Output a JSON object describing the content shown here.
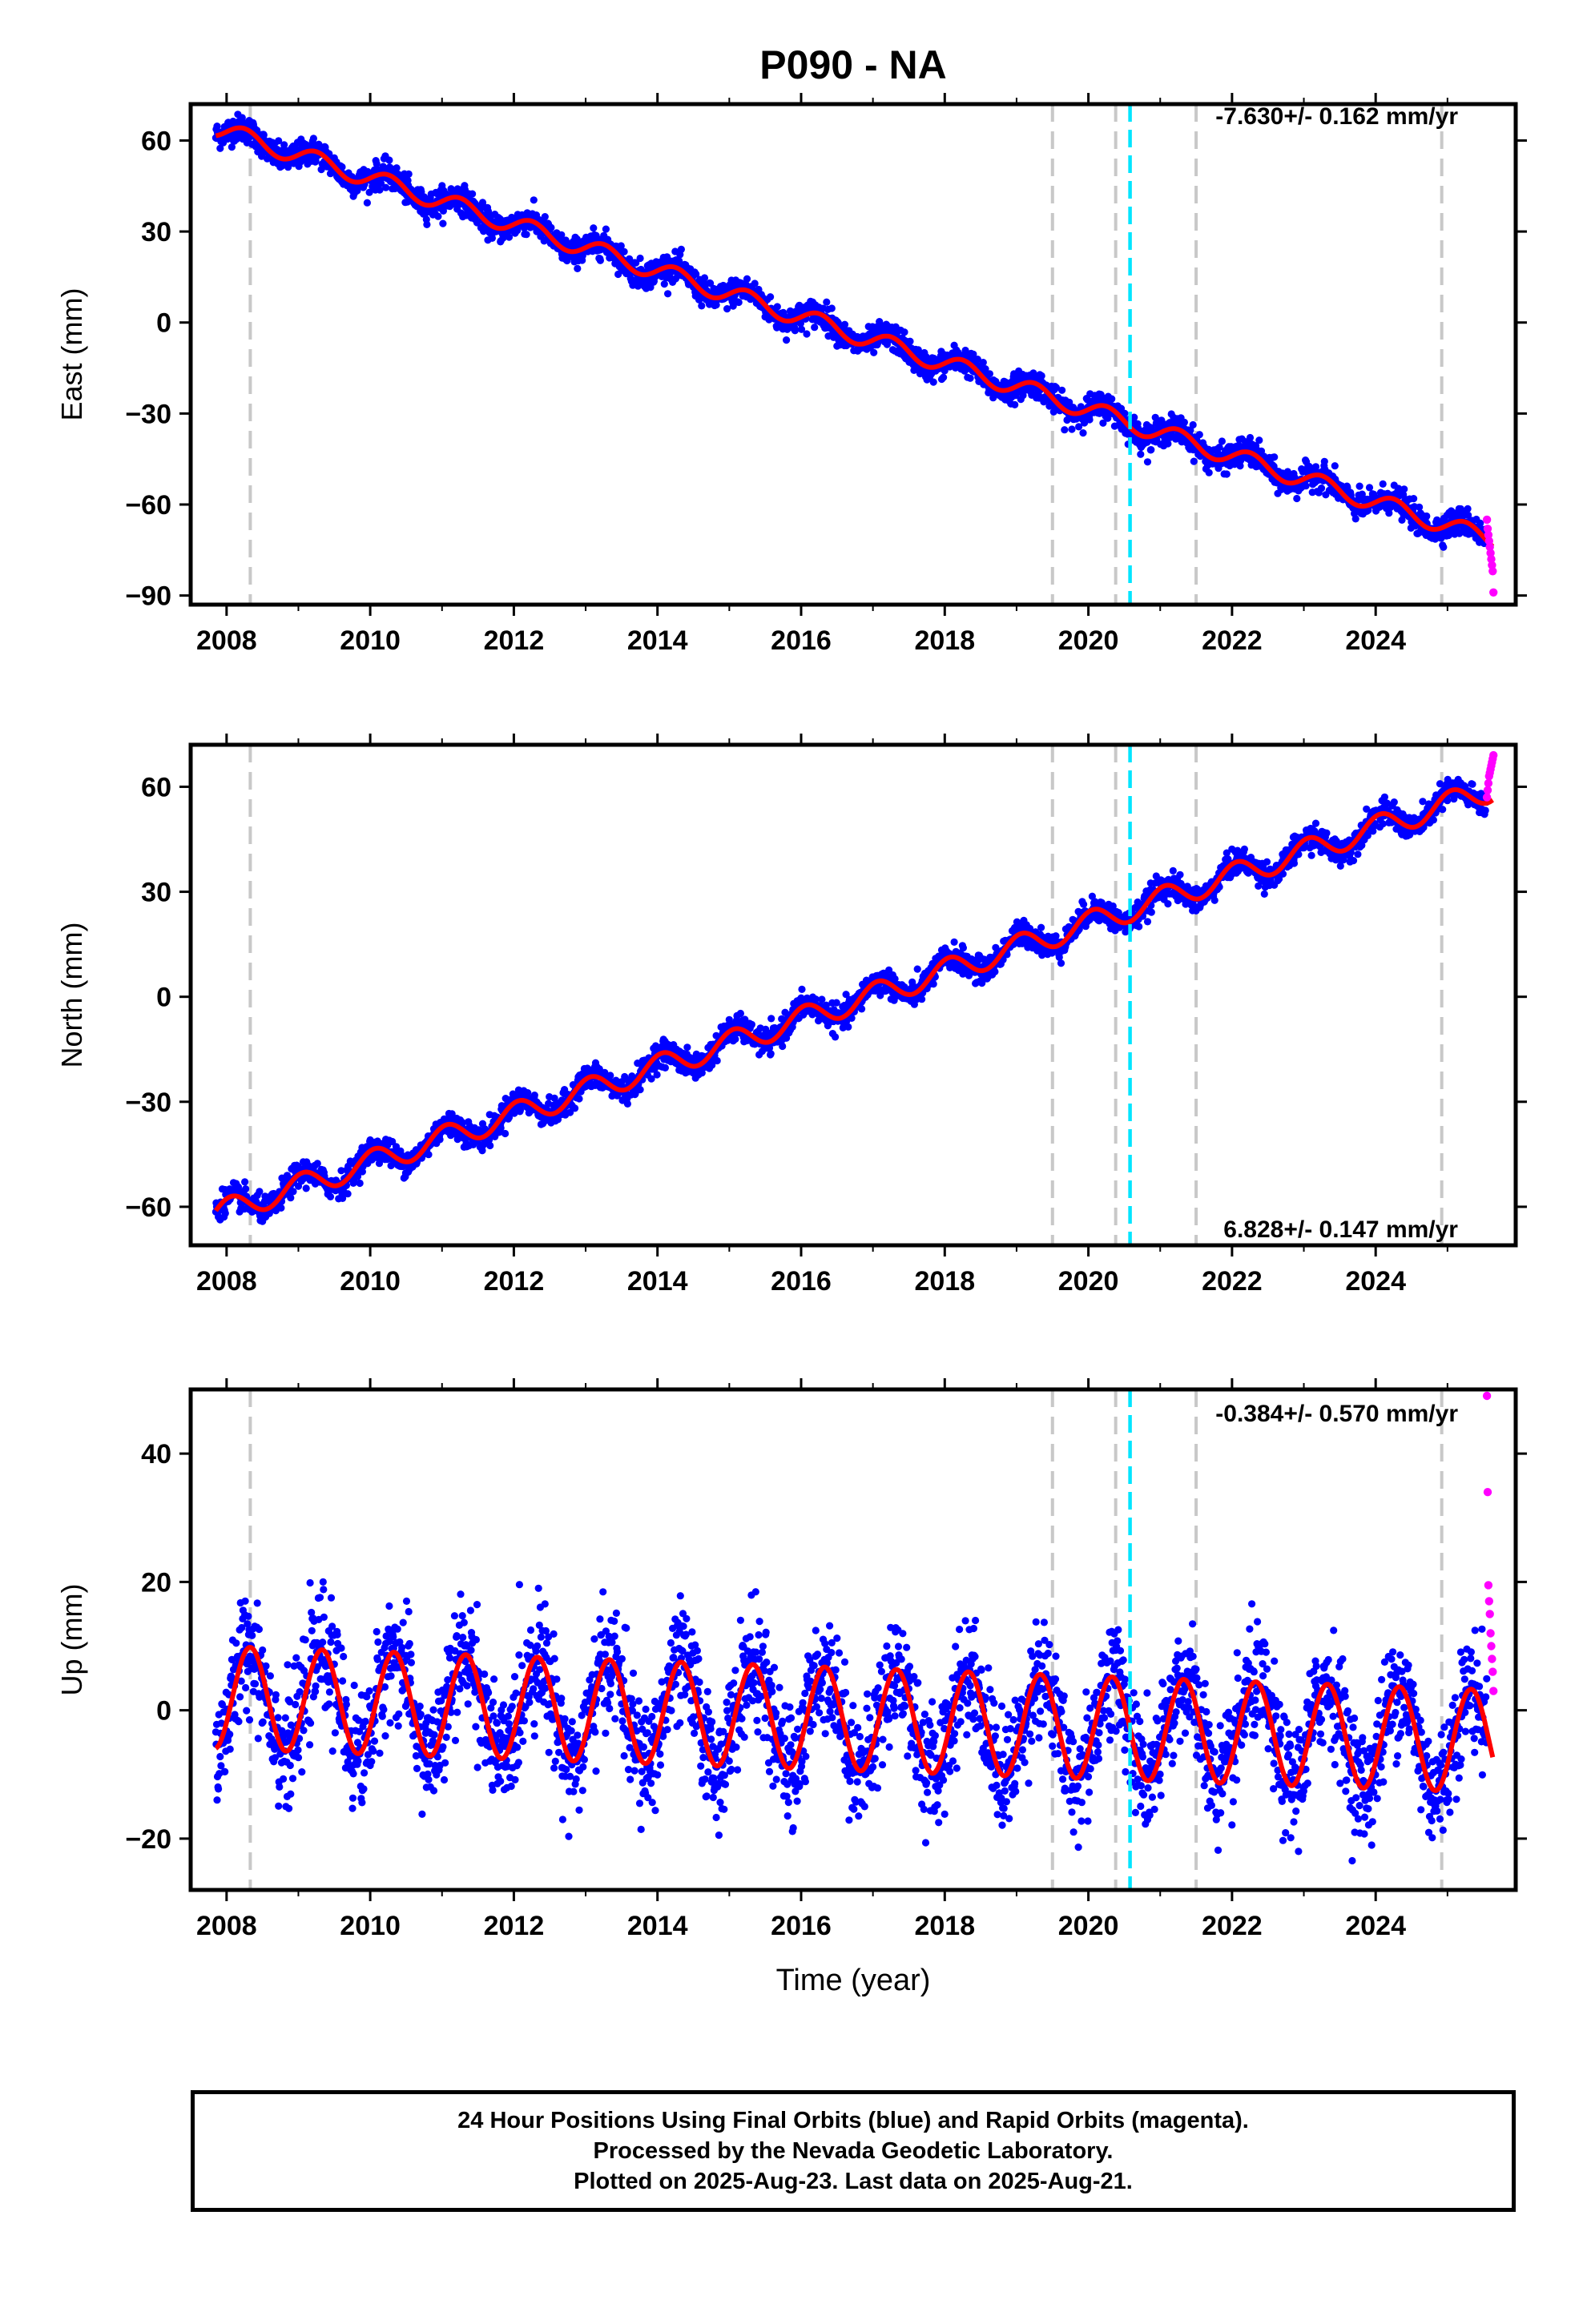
{
  "chart_data": [
    {
      "type": "scatter",
      "title": "P090 - NA",
      "ylabel": "East (mm)",
      "xlabel": "",
      "rate_label": "-7.630+/- 0.162 mm/yr",
      "xlim": [
        2007.5,
        2025.95
      ],
      "ylim": [
        -93,
        72
      ],
      "yticks": [
        -90,
        -60,
        -30,
        0,
        30,
        60
      ],
      "yticklabels": [
        "−90",
        "−60",
        "−30",
        "0",
        "30",
        "60"
      ],
      "xticks": [
        2008,
        2010,
        2012,
        2014,
        2016,
        2018,
        2020,
        2022,
        2024
      ],
      "xticklabels": [
        "2008",
        "2010",
        "2012",
        "2014",
        "2016",
        "2018",
        "2020",
        "2022",
        "2024"
      ],
      "model": {
        "t0": 2007.85,
        "start": 64,
        "rate": -7.63,
        "seasonal_amplitude": 3.0,
        "seasonal_phase": 0.0
      },
      "series": [
        {
          "name": "Final Orbits",
          "color": "#0000ff",
          "x_range": [
            2007.85,
            2025.55
          ],
          "noise_sd": 2.2
        },
        {
          "name": "Rapid Orbits",
          "color": "#ff00ff",
          "x_range": [
            2025.55,
            2025.64
          ],
          "y": [
            -65,
            -68,
            -70,
            -72,
            -74,
            -76,
            -78,
            -80,
            -82,
            -89
          ]
        }
      ],
      "fit_line_color": "#ff0000",
      "offset_lines": [
        2008.33,
        2019.5,
        2020.38,
        2021.5,
        2024.92
      ],
      "highlight_line": 2020.58
    },
    {
      "type": "scatter",
      "ylabel": "North (mm)",
      "xlabel": "",
      "rate_label": "6.828+/- 0.147 mm/yr",
      "xlim": [
        2007.5,
        2025.95
      ],
      "ylim": [
        -71,
        72
      ],
      "yticks": [
        -60,
        -30,
        0,
        30,
        60
      ],
      "yticklabels": [
        "−60",
        "−30",
        "0",
        "30",
        "60"
      ],
      "xticks": [
        2008,
        2010,
        2012,
        2014,
        2016,
        2018,
        2020,
        2022,
        2024
      ],
      "xticklabels": [
        "2008",
        "2010",
        "2012",
        "2014",
        "2016",
        "2018",
        "2020",
        "2022",
        "2024"
      ],
      "model": {
        "t0": 2007.85,
        "start": -62,
        "rate": 6.828,
        "seasonal_amplitude": 3.5,
        "seasonal_phase": 1.2
      },
      "series": [
        {
          "name": "Final Orbits",
          "color": "#0000ff",
          "x_range": [
            2007.85,
            2025.55
          ],
          "noise_sd": 1.8
        },
        {
          "name": "Rapid Orbits",
          "color": "#ff00ff",
          "x_range": [
            2025.55,
            2025.64
          ],
          "y": [
            57,
            59,
            61,
            63,
            64,
            65,
            66,
            67,
            68,
            69
          ]
        }
      ],
      "fit_line_color": "#ff0000",
      "offset_lines": [
        2008.33,
        2019.5,
        2020.38,
        2021.5,
        2024.92
      ],
      "highlight_line": 2020.58
    },
    {
      "type": "scatter",
      "ylabel": "Up (mm)",
      "xlabel": "Time (year)",
      "rate_label": "-0.384+/- 0.570 mm/yr",
      "xlim": [
        2007.5,
        2025.95
      ],
      "ylim": [
        -28,
        50
      ],
      "yticks": [
        -20,
        0,
        20,
        40
      ],
      "yticklabels": [
        "−20",
        "0",
        "20",
        "40"
      ],
      "xticks": [
        2008,
        2010,
        2012,
        2014,
        2016,
        2018,
        2020,
        2022,
        2024
      ],
      "xticklabels": [
        "2008",
        "2010",
        "2012",
        "2014",
        "2016",
        "2018",
        "2020",
        "2022",
        "2024"
      ],
      "model": {
        "t0": 2007.85,
        "start": 2,
        "rate": -0.384,
        "seasonal_amplitude": 8.0,
        "seasonal_phase": -0.5
      },
      "series": [
        {
          "name": "Final Orbits",
          "color": "#0000ff",
          "x_range": [
            2007.85,
            2025.55
          ],
          "noise_sd": 4.5
        },
        {
          "name": "Rapid Orbits",
          "color": "#ff00ff",
          "x_range": [
            2025.55,
            2025.64
          ],
          "y": [
            49,
            34,
            19.5,
            17,
            15,
            12,
            10,
            8,
            6,
            3
          ]
        }
      ],
      "fit_line_color": "#ff0000",
      "offset_lines": [
        2008.33,
        2019.5,
        2020.38,
        2021.5,
        2024.92
      ],
      "highlight_line": 2020.58
    }
  ],
  "footer": {
    "line1": "24 Hour Positions Using Final Orbits (blue) and Rapid Orbits (magenta).",
    "line2": "Processed by the Nevada Geodetic Laboratory.",
    "line3": "Plotted on 2025-Aug-23. Last data on 2025-Aug-21."
  }
}
